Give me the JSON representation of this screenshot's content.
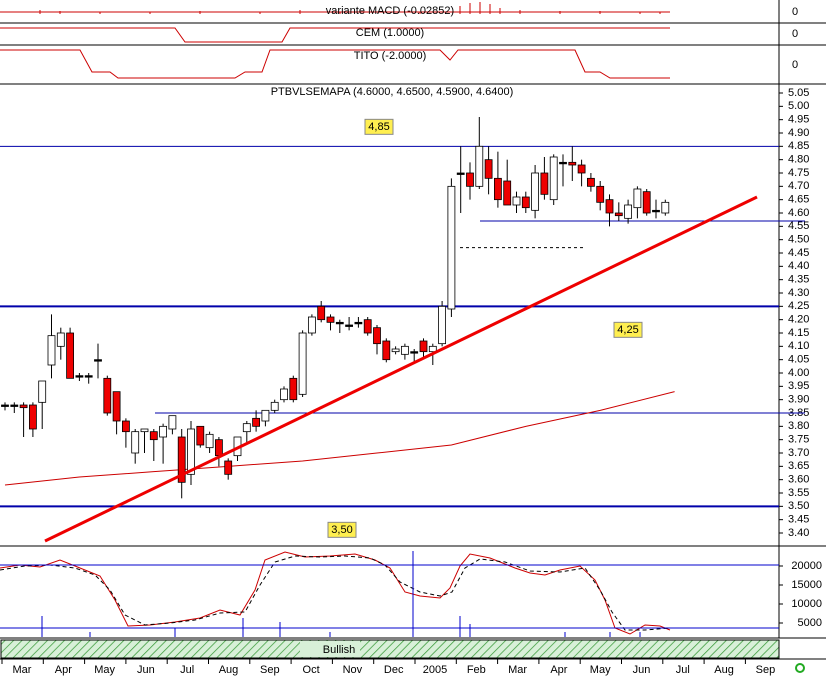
{
  "chart_data": {
    "type": "candlestick",
    "title": "PTBVLSEMAPA (4.6000, 4.6500, 4.5900, 4.6400)",
    "panels": [
      {
        "title": "variante MACD (-0.02852)",
        "tick": 0
      },
      {
        "title": "CEM (1.0000)",
        "tick": 0
      },
      {
        "title": "TITO (-2.0000)",
        "tick": 0
      }
    ],
    "open": [
      3.88,
      3.88,
      3.88,
      3.88,
      3.89,
      4.03,
      4.1,
      4.15,
      3.99,
      3.99,
      4.05,
      3.98,
      3.93,
      3.82,
      3.7,
      3.78,
      3.78,
      3.76,
      3.79,
      3.76,
      3.62,
      3.8,
      3.72,
      3.75,
      3.67,
      3.69,
      3.78,
      3.83,
      3.82,
      3.86,
      3.9,
      3.98,
      3.92,
      4.15,
      4.25,
      4.21,
      4.19,
      4.18,
      4.19,
      4.2,
      4.17,
      4.12,
      4.08,
      4.07,
      4.08,
      4.12,
      4.08,
      4.11,
      4.24,
      4.75,
      4.75,
      4.7,
      4.8,
      4.73,
      4.72,
      4.63,
      4.66,
      4.61,
      4.75,
      4.65,
      4.79,
      4.79,
      4.78,
      4.73,
      4.7,
      4.65,
      4.6,
      4.58,
      4.62,
      4.68,
      4.61,
      4.6
    ],
    "high": [
      3.89,
      3.89,
      3.89,
      3.89,
      3.97,
      4.22,
      4.17,
      4.17,
      4.0,
      4.0,
      4.11,
      3.99,
      3.93,
      3.83,
      3.79,
      3.79,
      3.79,
      3.81,
      3.84,
      3.79,
      3.82,
      3.8,
      3.78,
      3.76,
      3.68,
      3.76,
      3.82,
      3.86,
      3.86,
      3.9,
      3.95,
      3.99,
      4.16,
      4.22,
      4.27,
      4.22,
      4.2,
      4.21,
      4.21,
      4.21,
      4.18,
      4.13,
      4.1,
      4.11,
      4.09,
      4.13,
      4.11,
      4.27,
      4.73,
      4.85,
      4.79,
      4.96,
      4.85,
      4.83,
      4.8,
      4.68,
      4.68,
      4.78,
      4.81,
      4.82,
      4.82,
      4.85,
      4.8,
      4.75,
      4.72,
      4.67,
      4.64,
      4.65,
      4.7,
      4.69,
      4.65,
      4.65
    ],
    "low": [
      3.86,
      3.85,
      3.76,
      3.76,
      3.79,
      3.98,
      4.05,
      3.98,
      3.97,
      3.96,
      3.98,
      3.84,
      3.77,
      3.72,
      3.66,
      3.7,
      3.67,
      3.66,
      3.77,
      3.53,
      3.58,
      3.72,
      3.7,
      3.65,
      3.6,
      3.67,
      3.74,
      3.78,
      3.8,
      3.85,
      3.89,
      3.89,
      3.91,
      4.14,
      4.19,
      4.16,
      4.15,
      4.16,
      4.17,
      4.14,
      4.07,
      4.04,
      4.07,
      4.05,
      4.04,
      4.06,
      4.03,
      4.1,
      4.21,
      4.6,
      4.65,
      4.69,
      4.67,
      4.62,
      4.63,
      4.6,
      4.6,
      4.58,
      4.65,
      4.63,
      4.7,
      4.72,
      4.7,
      4.68,
      4.61,
      4.55,
      4.57,
      4.56,
      4.58,
      4.59,
      4.58,
      4.59
    ],
    "close": [
      3.88,
      3.88,
      3.87,
      3.79,
      3.97,
      4.14,
      4.15,
      3.98,
      3.99,
      3.99,
      4.05,
      3.85,
      3.82,
      3.78,
      3.78,
      3.79,
      3.75,
      3.8,
      3.84,
      3.59,
      3.79,
      3.73,
      3.77,
      3.69,
      3.62,
      3.76,
      3.81,
      3.8,
      3.86,
      3.89,
      3.94,
      3.9,
      4.15,
      4.21,
      4.2,
      4.19,
      4.19,
      4.18,
      4.19,
      4.15,
      4.11,
      4.05,
      4.09,
      4.1,
      4.08,
      4.08,
      4.1,
      4.25,
      4.7,
      4.75,
      4.7,
      4.85,
      4.73,
      4.65,
      4.63,
      4.66,
      4.62,
      4.75,
      4.67,
      4.81,
      4.79,
      4.78,
      4.75,
      4.7,
      4.64,
      4.6,
      4.59,
      4.63,
      4.69,
      4.6,
      4.61,
      4.64
    ],
    "moving_average": [
      3.58,
      3.61,
      3.63,
      3.65,
      3.67,
      3.7,
      3.73,
      3.8,
      3.86,
      3.93
    ],
    "trendline": [
      3.37,
      4.66
    ],
    "levels": [
      {
        "value": 4.85,
        "label": "4,85"
      },
      {
        "value": 4.25,
        "label": "4,25"
      },
      {
        "value": 3.5,
        "label": "3,50"
      }
    ],
    "support_lines": [
      3.85,
      4.57
    ],
    "dashed_line": 4.47,
    "ylim": [
      3.4,
      5.05
    ],
    "yticks": [
      {
        "value": 3.4,
        "label": "3.40"
      },
      {
        "value": 3.45,
        "label": "3.45"
      },
      {
        "value": 3.5,
        "label": "3.50"
      },
      {
        "value": 3.55,
        "label": "3.55"
      },
      {
        "value": 3.6,
        "label": "3.60"
      },
      {
        "value": 3.65,
        "label": "3.65"
      },
      {
        "value": 3.7,
        "label": "3.70"
      },
      {
        "value": 3.75,
        "label": "3.75"
      },
      {
        "value": 3.8,
        "label": "3.80"
      },
      {
        "value": 3.85,
        "label": "3.85"
      },
      {
        "value": 3.9,
        "label": "3.90"
      },
      {
        "value": 3.95,
        "label": "3.95"
      },
      {
        "value": 4.0,
        "label": "4.00"
      },
      {
        "value": 4.05,
        "label": "4.05"
      },
      {
        "value": 4.1,
        "label": "4.10"
      },
      {
        "value": 4.15,
        "label": "4.15"
      },
      {
        "value": 4.2,
        "label": "4.20"
      },
      {
        "value": 4.25,
        "label": "4.25"
      },
      {
        "value": 4.3,
        "label": "4.30"
      },
      {
        "value": 4.35,
        "label": "4.35"
      },
      {
        "value": 4.4,
        "label": "4.40"
      },
      {
        "value": 4.45,
        "label": "4.45"
      },
      {
        "value": 4.5,
        "label": "4.50"
      },
      {
        "value": 4.55,
        "label": "4.55"
      },
      {
        "value": 4.6,
        "label": "4.60"
      },
      {
        "value": 4.65,
        "label": "4.65"
      },
      {
        "value": 4.7,
        "label": "4.70"
      },
      {
        "value": 4.75,
        "label": "4.75"
      },
      {
        "value": 4.8,
        "label": "4.80"
      },
      {
        "value": 4.85,
        "label": "4.85"
      },
      {
        "value": 4.9,
        "label": "4.90"
      },
      {
        "value": 4.95,
        "label": "4.95"
      },
      {
        "value": 5.0,
        "label": "5.00"
      },
      {
        "value": 5.05,
        "label": "5.05"
      }
    ],
    "volume_ticks": [
      20000,
      15000,
      10000,
      5000
    ],
    "banner": "Bullish",
    "x_labels": [
      "Mar",
      "Apr",
      "May",
      "Jun",
      "Jul",
      "Aug",
      "Sep",
      "Oct",
      "Nov",
      "Dec",
      "2005",
      "Feb",
      "Mar",
      "Apr",
      "May",
      "Jun",
      "Jul",
      "Aug",
      "Sep"
    ]
  }
}
